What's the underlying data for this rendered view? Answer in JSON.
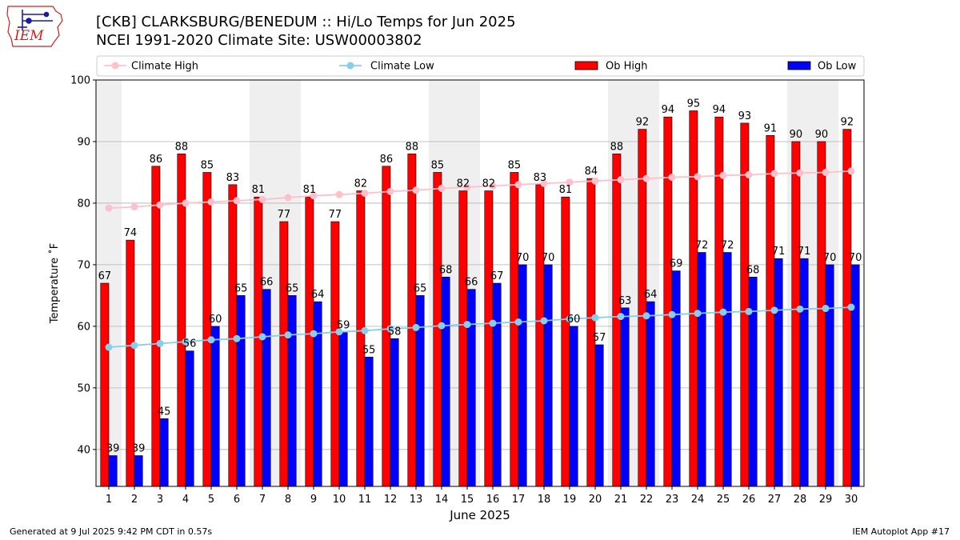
{
  "header": {
    "title_line1": "[CKB] CLARKSBURG/BENEDUM :: Hi/Lo Temps for Jun 2025",
    "title_line2": "NCEI 1991-2020 Climate Site: USW00003802",
    "logo_text": "IEM"
  },
  "footer": {
    "generated": "Generated at 9 Jul 2025 9:42 PM CDT in 0.57s",
    "app": "IEM Autoplot App #17"
  },
  "colors": {
    "ob_high": "#ff0000",
    "ob_low": "#0000ff",
    "climate_high": "#ffc0cb",
    "climate_low": "#87ceeb",
    "weekend_shade": "#efefef"
  },
  "chart_data": {
    "type": "bar",
    "xlabel": "June 2025",
    "ylabel": "Temperature ˚F",
    "ylim": [
      34,
      100
    ],
    "yticks": [
      40,
      50,
      60,
      70,
      80,
      90,
      100
    ],
    "grid": true,
    "legend_position": "top",
    "categories": [
      "1",
      "2",
      "3",
      "4",
      "5",
      "6",
      "7",
      "8",
      "9",
      "10",
      "11",
      "12",
      "13",
      "14",
      "15",
      "16",
      "17",
      "18",
      "19",
      "20",
      "21",
      "22",
      "23",
      "24",
      "25",
      "26",
      "27",
      "28",
      "29",
      "30"
    ],
    "shaded_days": [
      1,
      7,
      8,
      14,
      15,
      21,
      22,
      28,
      29
    ],
    "series": [
      {
        "name": "Climate High",
        "kind": "line",
        "values": [
          79.2,
          79.4,
          79.7,
          80.0,
          80.2,
          80.4,
          80.6,
          80.9,
          81.2,
          81.4,
          81.6,
          81.9,
          82.1,
          82.4,
          82.6,
          82.8,
          83.0,
          83.2,
          83.4,
          83.6,
          83.8,
          84.0,
          84.2,
          84.3,
          84.5,
          84.6,
          84.8,
          84.9,
          85.0,
          85.2
        ]
      },
      {
        "name": "Climate Low",
        "kind": "line",
        "values": [
          56.6,
          56.9,
          57.2,
          57.5,
          57.8,
          58.0,
          58.3,
          58.6,
          58.8,
          59.1,
          59.3,
          59.6,
          59.8,
          60.1,
          60.3,
          60.5,
          60.7,
          60.9,
          61.2,
          61.4,
          61.6,
          61.7,
          61.9,
          62.1,
          62.3,
          62.4,
          62.6,
          62.8,
          62.9,
          63.1
        ]
      },
      {
        "name": "Ob High",
        "kind": "bar",
        "values": [
          67,
          74,
          86,
          88,
          85,
          83,
          81,
          77,
          81,
          77,
          82,
          86,
          88,
          85,
          82,
          82,
          85,
          83,
          81,
          84,
          88,
          92,
          94,
          95,
          94,
          93,
          91,
          90,
          90,
          92
        ]
      },
      {
        "name": "Ob Low",
        "kind": "bar",
        "values": [
          39,
          39,
          45,
          56,
          60,
          65,
          66,
          65,
          64,
          59,
          55,
          58,
          65,
          68,
          66,
          67,
          70,
          70,
          60,
          57,
          63,
          64,
          69,
          72,
          72,
          68,
          71,
          71,
          70,
          70
        ]
      }
    ]
  }
}
